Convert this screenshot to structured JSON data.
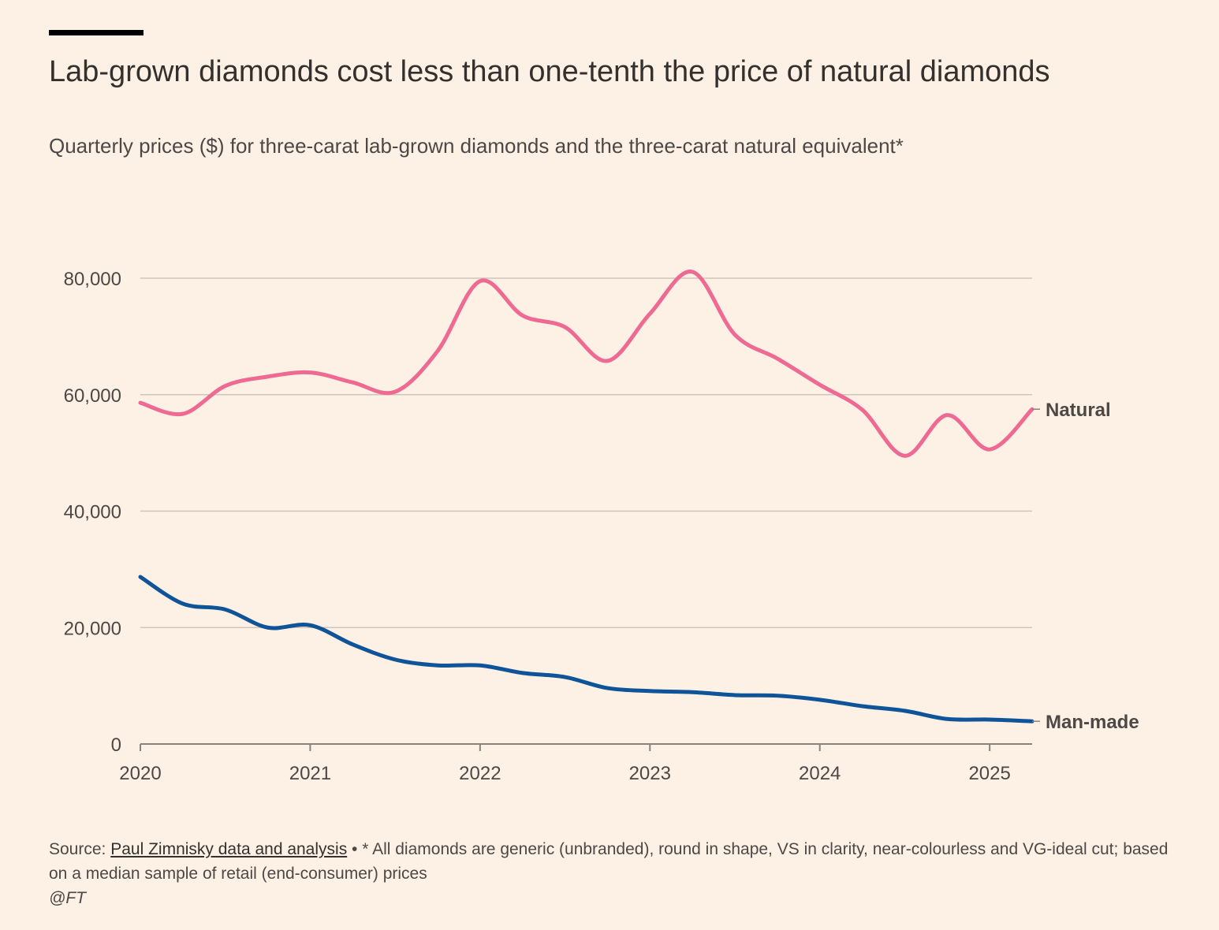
{
  "title": "Lab-grown diamonds cost less than one-tenth the price of natural diamonds",
  "subtitle": "Quarterly prices ($) for three-carat lab-grown diamonds and the three-carat natural equivalent*",
  "footer": {
    "source_prefix": "Source:",
    "source_link": "Paul Zimnisky data and analysis",
    "note": " • * All diamonds are generic (unbranded), round in shape, VS in clarity, near-colourless and VG-ideal cut; based on a median sample of retail (end-consumer) prices",
    "credit": "@FT"
  },
  "chart_data": {
    "type": "line",
    "title": "Lab-grown diamonds cost less than one-tenth the price of natural diamonds",
    "ylabel": "",
    "xlabel": "",
    "ylim": [
      0,
      80000
    ],
    "xlim": [
      2020,
      2025.25
    ],
    "yticks": [
      "0",
      "20,000",
      "40,000",
      "60,000",
      "80,000"
    ],
    "ytick_values": [
      0,
      20000,
      40000,
      60000,
      80000
    ],
    "xticks": [
      "2020",
      "2021",
      "2022",
      "2023",
      "2024",
      "2025"
    ],
    "xtick_values": [
      2020,
      2021,
      2022,
      2023,
      2024,
      2025
    ],
    "grid": true,
    "legend": "direct labels at line ends (right)",
    "x": [
      2020.0,
      2020.25,
      2020.5,
      2020.75,
      2021.0,
      2021.25,
      2021.5,
      2021.75,
      2022.0,
      2022.25,
      2022.5,
      2022.75,
      2023.0,
      2023.25,
      2023.5,
      2023.75,
      2024.0,
      2024.25,
      2024.5,
      2024.75,
      2025.0,
      2025.25
    ],
    "series": [
      {
        "name": "Natural",
        "color": "#ee6a93",
        "values": [
          58600,
          56700,
          61500,
          63100,
          63800,
          62100,
          60500,
          67500,
          79500,
          73600,
          71600,
          65800,
          73900,
          81100,
          70300,
          66200,
          61700,
          57400,
          49500,
          56500,
          50600,
          57500
        ]
      },
      {
        "name": "Man-made",
        "color": "#0f5499",
        "values": [
          28700,
          24100,
          23100,
          20000,
          20400,
          17100,
          14500,
          13500,
          13500,
          12200,
          11500,
          9600,
          9100,
          8900,
          8400,
          8300,
          7600,
          6500,
          5700,
          4300,
          4200,
          3900
        ]
      }
    ]
  }
}
